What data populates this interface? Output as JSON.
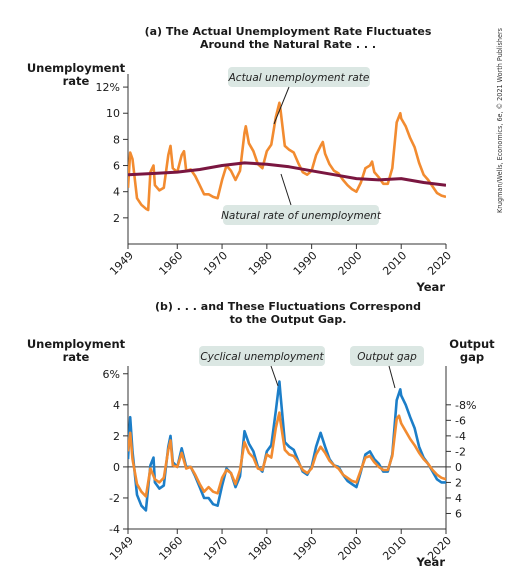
{
  "credit": "Krugman/Wells, Economics, 6e, © 2021 Worth Publishers",
  "colors": {
    "actual": "#f28b30",
    "natural": "#7a1640",
    "cyclical": "#1c7ec8",
    "output_gap": "#f28b30",
    "callout_box": "#dbe7e3",
    "axis": "#333333"
  },
  "chart_data": [
    {
      "type": "line",
      "panel": "a",
      "title_line1": "(a) The Actual Unemployment Rate Fluctuates",
      "title_line2": "Around the Natural Rate . . .",
      "ylabel_line1": "Unemployment",
      "ylabel_line2": "rate",
      "xlabel": "Year",
      "xlim": [
        1949,
        2020
      ],
      "ylim": [
        0,
        13
      ],
      "x_ticks": [
        "1949",
        "1960",
        "1970",
        "1980",
        "1990",
        "2000",
        "2010",
        "2020"
      ],
      "y_ticks": [
        "2",
        "4",
        "6",
        "8",
        "10",
        "12%"
      ],
      "y_tick_values": [
        2,
        4,
        6,
        8,
        10,
        12
      ],
      "annotations": [
        "Actual unemployment rate",
        "Natural rate of unemployment"
      ],
      "series": [
        {
          "name": "Actual unemployment rate",
          "x": [
            1949,
            1949.5,
            1950,
            1951,
            1952,
            1953,
            1953.5,
            1954,
            1954.7,
            1955,
            1956,
            1957,
            1958,
            1958.5,
            1959,
            1960,
            1961,
            1961.5,
            1962,
            1963,
            1964,
            1965,
            1966,
            1967,
            1968,
            1969,
            1970,
            1971,
            1972,
            1973,
            1974,
            1975,
            1975.3,
            1976,
            1977,
            1978,
            1979,
            1980,
            1981,
            1982,
            1982.8,
            1983,
            1984,
            1985,
            1986,
            1987,
            1988,
            1989,
            1990,
            1991,
            1992,
            1992.5,
            1993,
            1994,
            1995,
            1996,
            1997,
            1998,
            1999,
            2000,
            2001,
            2002,
            2003,
            2003.5,
            2004,
            2005,
            2006,
            2007,
            2008,
            2009,
            2009.8,
            2010,
            2011,
            2012,
            2013,
            2014,
            2015,
            2016,
            2017,
            2018,
            2019,
            2020
          ],
          "values": [
            4.3,
            7.0,
            6.5,
            3.5,
            3.0,
            2.7,
            2.6,
            5.5,
            6.0,
            4.5,
            4.1,
            4.3,
            6.8,
            7.5,
            5.8,
            5.5,
            6.8,
            7.1,
            5.6,
            5.7,
            5.2,
            4.5,
            3.8,
            3.8,
            3.6,
            3.5,
            4.9,
            6.0,
            5.6,
            4.9,
            5.6,
            8.5,
            9.0,
            7.7,
            7.1,
            6.1,
            5.8,
            7.1,
            7.6,
            9.7,
            10.8,
            10.4,
            7.5,
            7.2,
            7.0,
            6.2,
            5.5,
            5.3,
            5.6,
            6.8,
            7.5,
            7.8,
            6.9,
            6.1,
            5.6,
            5.4,
            4.9,
            4.5,
            4.2,
            4.0,
            4.7,
            5.8,
            6.0,
            6.3,
            5.5,
            5.1,
            4.6,
            4.6,
            5.8,
            9.3,
            10.0,
            9.6,
            9.0,
            8.1,
            7.4,
            6.2,
            5.3,
            4.9,
            4.4,
            3.9,
            3.7,
            3.6
          ]
        },
        {
          "name": "Natural rate of unemployment",
          "x": [
            1949,
            1955,
            1960,
            1965,
            1970,
            1975,
            1980,
            1985,
            1990,
            1995,
            2000,
            2005,
            2010,
            2015,
            2020
          ],
          "values": [
            5.3,
            5.4,
            5.5,
            5.7,
            6.0,
            6.2,
            6.1,
            5.9,
            5.6,
            5.3,
            5.0,
            4.9,
            5.0,
            4.7,
            4.5
          ]
        }
      ]
    },
    {
      "type": "line",
      "panel": "b",
      "title_line1": "(b) . . . and These Fluctuations Correspond",
      "title_line2": "to the Output Gap.",
      "ylabel_line1": "Unemployment",
      "ylabel_line2": "rate",
      "y2label_line1": "Output",
      "y2label_line2": "gap",
      "xlabel": "Year",
      "xlim": [
        1949,
        2020
      ],
      "ylim": [
        -4,
        6.5
      ],
      "y2lim_note": "right axis inverted: -8% at top, 6 at bottom",
      "x_ticks": [
        "1949",
        "1960",
        "1970",
        "1980",
        "1990",
        "2000",
        "2010",
        "2020"
      ],
      "y_ticks": [
        "-4",
        "-2",
        "0",
        "2",
        "4",
        "6%"
      ],
      "y_tick_values": [
        -4,
        -2,
        0,
        2,
        4,
        6
      ],
      "y2_ticks": [
        "6",
        "4",
        "2",
        "0",
        "-2",
        "-4",
        "-6",
        "-8%"
      ],
      "y2_tick_values": [
        6,
        4,
        2,
        0,
        -2,
        -4,
        -6,
        -8
      ],
      "annotations": [
        "Cyclical unemployment",
        "Output gap"
      ],
      "series": [
        {
          "name": "Cyclical unemployment",
          "x": [
            1949,
            1949.5,
            1950,
            1951,
            1952,
            1953,
            1954,
            1954.7,
            1955,
            1956,
            1957,
            1958,
            1958.5,
            1959,
            1960,
            1961,
            1962,
            1963,
            1964,
            1965,
            1966,
            1967,
            1968,
            1969,
            1970,
            1971,
            1972,
            1973,
            1974,
            1975,
            1976,
            1977,
            1978,
            1979,
            1980,
            1981,
            1982,
            1982.8,
            1983,
            1984,
            1985,
            1986,
            1987,
            1988,
            1989,
            1990,
            1991,
            1992,
            1993,
            1994,
            1995,
            1996,
            1997,
            1998,
            1999,
            2000,
            2001,
            2002,
            2003,
            2004,
            2005,
            2006,
            2007,
            2008,
            2009,
            2009.8,
            2010,
            2011,
            2012,
            2013,
            2014,
            2015,
            2016,
            2017,
            2018,
            2019,
            2020
          ],
          "values": [
            0.5,
            3.2,
            1.0,
            -1.8,
            -2.5,
            -2.8,
            0.1,
            0.6,
            -1.0,
            -1.4,
            -1.2,
            1.3,
            2.0,
            0.3,
            0.0,
            1.2,
            0.0,
            0.0,
            -0.6,
            -1.3,
            -2.0,
            -2.0,
            -2.4,
            -2.5,
            -1.2,
            -0.1,
            -0.4,
            -1.3,
            -0.6,
            2.3,
            1.5,
            1.0,
            0.0,
            -0.3,
            1.0,
            1.4,
            3.6,
            5.5,
            4.8,
            1.6,
            1.3,
            1.1,
            0.4,
            -0.3,
            -0.5,
            0.0,
            1.3,
            2.2,
            1.3,
            0.5,
            0.1,
            0.0,
            -0.5,
            -0.9,
            -1.1,
            -1.3,
            -0.3,
            0.8,
            1.0,
            0.5,
            0.2,
            -0.3,
            -0.3,
            0.8,
            4.3,
            5.0,
            4.6,
            4.0,
            3.2,
            2.5,
            1.3,
            0.6,
            0.2,
            -0.3,
            -0.8,
            -1.0,
            -1.0
          ]
        },
        {
          "name": "Output gap",
          "x": [
            1949,
            1949.5,
            1950,
            1951,
            1952,
            1953,
            1954,
            1955,
            1956,
            1957,
            1958,
            1958.5,
            1959,
            1960,
            1961,
            1962,
            1963,
            1964,
            1965,
            1966,
            1967,
            1968,
            1969,
            1970,
            1971,
            1972,
            1973,
            1974,
            1975,
            1976,
            1977,
            1978,
            1979,
            1980,
            1981,
            1982,
            1982.8,
            1983,
            1984,
            1985,
            1986,
            1987,
            1988,
            1989,
            1990,
            1991,
            1992,
            1993,
            1994,
            1995,
            1996,
            1997,
            1998,
            1999,
            2000,
            2001,
            2002,
            2003,
            2004,
            2005,
            2006,
            2007,
            2008,
            2009,
            2009.5,
            2010,
            2011,
            2012,
            2013,
            2014,
            2015,
            2016,
            2017,
            2018,
            2019,
            2020
          ],
          "values": [
            -2.0,
            -4.4,
            -1.0,
            2.2,
            3.2,
            3.8,
            0.2,
            1.6,
            2.0,
            1.4,
            -2.2,
            -3.4,
            -0.2,
            0.0,
            -1.8,
            0.2,
            0.0,
            1.0,
            2.2,
            3.2,
            2.6,
            3.2,
            3.4,
            1.4,
            0.4,
            0.8,
            2.2,
            0.4,
            -3.2,
            -1.8,
            -1.2,
            0.2,
            0.4,
            -1.6,
            -1.2,
            -5.0,
            -7.0,
            -6.0,
            -2.2,
            -1.6,
            -1.4,
            -0.6,
            0.4,
            0.8,
            0.2,
            -1.6,
            -2.6,
            -1.8,
            -0.8,
            -0.2,
            0.2,
            1.0,
            1.4,
            1.8,
            2.0,
            0.4,
            -1.2,
            -1.4,
            -0.6,
            0.0,
            0.4,
            0.4,
            -1.4,
            -6.2,
            -6.6,
            -5.6,
            -4.6,
            -3.6,
            -2.8,
            -1.8,
            -1.0,
            -0.4,
            0.4,
            1.0,
            1.4,
            1.6
          ]
        }
      ]
    }
  ]
}
